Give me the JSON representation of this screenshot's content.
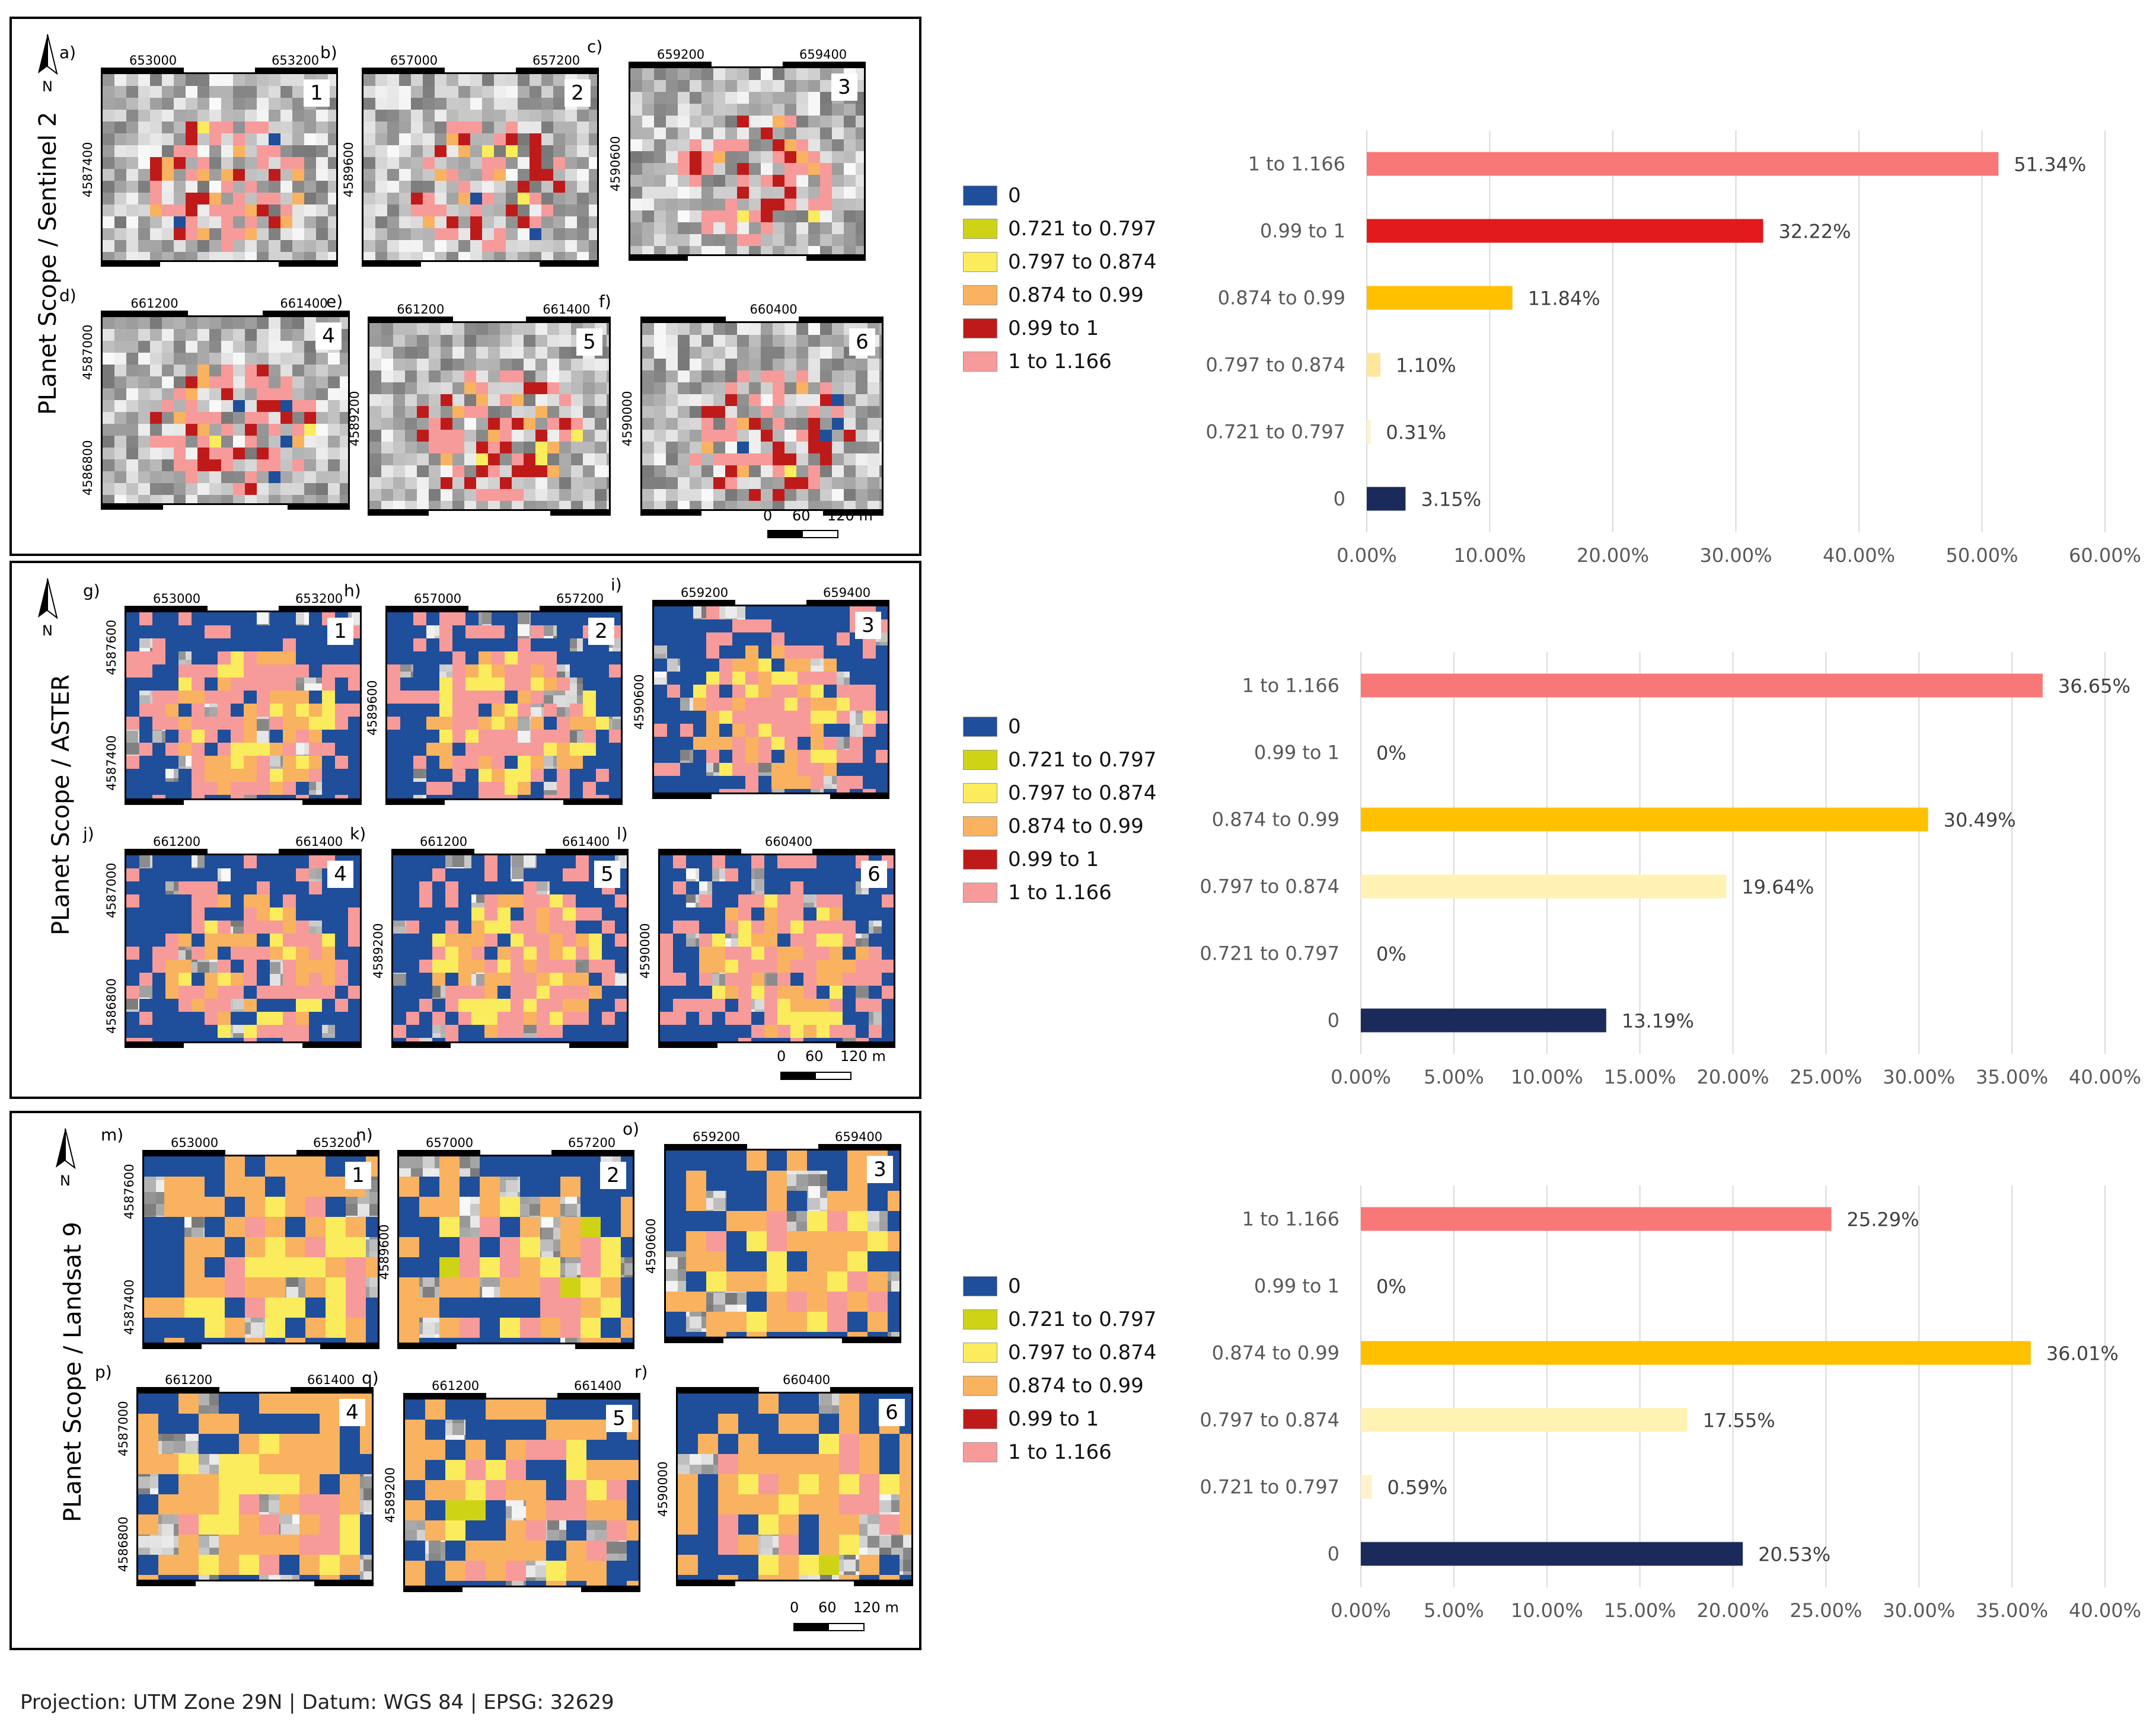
{
  "panels": [
    {
      "title": "PLanet Scope / Sentinel 2",
      "north_label": "N",
      "maps": [
        {
          "letter": "a)",
          "number": "1",
          "x_ticks": [
            "653000",
            "653200"
          ],
          "y_tick": "4587400"
        },
        {
          "letter": "b)",
          "number": "2",
          "x_ticks": [
            "657000",
            "657200"
          ],
          "y_tick": "4589600"
        },
        {
          "letter": "c)",
          "number": "3",
          "x_ticks": [
            "659200",
            "659400"
          ],
          "y_tick": "4590600"
        },
        {
          "letter": "d)",
          "number": "4",
          "x_ticks": [
            "661200",
            "661400"
          ],
          "y_ticks": [
            "4587000",
            "4586800"
          ]
        },
        {
          "letter": "e)",
          "number": "5",
          "x_ticks": [
            "661200",
            "661400"
          ],
          "y_tick": "4589200"
        },
        {
          "letter": "f)",
          "number": "6",
          "x_ticks": [
            "660400"
          ],
          "y_tick": "4590000"
        }
      ],
      "scale_labels": [
        "0",
        "60",
        "120 m"
      ]
    },
    {
      "title": "PLanet Scope / ASTER",
      "north_label": "N",
      "maps": [
        {
          "letter": "g)",
          "number": "1",
          "x_ticks": [
            "653000",
            "653200"
          ],
          "y_ticks": [
            "4587600",
            "4587400"
          ]
        },
        {
          "letter": "h)",
          "number": "2",
          "x_ticks": [
            "657000",
            "657200"
          ],
          "y_tick": "4589600"
        },
        {
          "letter": "i)",
          "number": "3",
          "x_ticks": [
            "659200",
            "659400"
          ],
          "y_tick": "4590600"
        },
        {
          "letter": "j)",
          "number": "4",
          "x_ticks": [
            "661200",
            "661400"
          ],
          "y_ticks": [
            "4587000",
            "4586800"
          ]
        },
        {
          "letter": "k)",
          "number": "5",
          "x_ticks": [
            "661200",
            "661400"
          ],
          "y_tick": "4589200"
        },
        {
          "letter": "l)",
          "number": "6",
          "x_ticks": [
            "660400"
          ],
          "y_tick": "4590000"
        }
      ],
      "scale_labels": [
        "0",
        "60",
        "120 m"
      ]
    },
    {
      "title": "PLanet Scope / Landsat 9",
      "north_label": "N",
      "maps": [
        {
          "letter": "m)",
          "number": "1",
          "x_ticks": [
            "653000",
            "653200"
          ],
          "y_ticks": [
            "4587600",
            "4587400"
          ]
        },
        {
          "letter": "n)",
          "number": "2",
          "x_ticks": [
            "657000",
            "657200"
          ],
          "y_tick": "4589600"
        },
        {
          "letter": "o)",
          "number": "3",
          "x_ticks": [
            "659200",
            "659400"
          ],
          "y_tick": "4590600"
        },
        {
          "letter": "p)",
          "number": "4",
          "x_ticks": [
            "661200",
            "661400"
          ],
          "y_ticks": [
            "4587000",
            "4586800"
          ]
        },
        {
          "letter": "q)",
          "number": "5",
          "x_ticks": [
            "661200",
            "661400"
          ],
          "y_tick": "4589200"
        },
        {
          "letter": "r)",
          "number": "6",
          "x_ticks": [
            "660400"
          ],
          "y_tick": "4590000"
        }
      ],
      "scale_labels": [
        "0",
        "60",
        "120 m"
      ]
    }
  ],
  "legend": {
    "items": [
      {
        "label": "0",
        "color": "#1f4e9a"
      },
      {
        "label": "0.721 to 0.797",
        "color": "#cfd316"
      },
      {
        "label": "0.797 to 0.874",
        "color": "#fbec5d"
      },
      {
        "label": "0.874 to 0.99",
        "color": "#f9b25f"
      },
      {
        "label": "0.99 to 1",
        "color": "#bf1a1a"
      },
      {
        "label": "1 to 1.166",
        "color": "#f79a9a"
      }
    ]
  },
  "chart_data": [
    {
      "type": "bar",
      "orientation": "horizontal",
      "title": "",
      "xlabel": "",
      "ylabel": "",
      "categories": [
        "1 to 1.166",
        "0.99 to 1",
        "0.874 to 0.99",
        "0.797 to 0.874",
        "0.721 to 0.797",
        "0"
      ],
      "values": [
        51.34,
        32.22,
        11.84,
        1.1,
        0.31,
        3.15
      ],
      "value_labels": [
        "51.34%",
        "32.22%",
        "11.84%",
        "1.10%",
        "0.31%",
        "3.15%"
      ],
      "colors": [
        "#f87777",
        "#e31a1c",
        "#ffc000",
        "#ffe699",
        "#fff2cc",
        "#1a2a5a"
      ],
      "xlim": [
        0,
        60
      ],
      "x_ticks": [
        "0.00%",
        "10.00%",
        "20.00%",
        "30.00%",
        "40.00%",
        "50.00%",
        "60.00%"
      ],
      "grid": true
    },
    {
      "type": "bar",
      "orientation": "horizontal",
      "title": "",
      "xlabel": "",
      "ylabel": "",
      "categories": [
        "1 to 1.166",
        "0.99 to 1",
        "0.874 to 0.99",
        "0.797 to 0.874",
        "0.721 to 0.797",
        "0"
      ],
      "values": [
        36.65,
        0,
        30.49,
        19.64,
        0,
        13.19
      ],
      "value_labels": [
        "36.65%",
        "0%",
        "30.49%",
        "19.64%",
        "0%",
        "13.19%"
      ],
      "colors": [
        "#f87777",
        "#e31a1c",
        "#ffc000",
        "#fff2b3",
        "#fff2cc",
        "#1a2a5a"
      ],
      "xlim": [
        0,
        40
      ],
      "x_ticks": [
        "0.00%",
        "5.00%",
        "10.00%",
        "15.00%",
        "20.00%",
        "25.00%",
        "30.00%",
        "35.00%",
        "40.00%"
      ],
      "grid": true
    },
    {
      "type": "bar",
      "orientation": "horizontal",
      "title": "",
      "xlabel": "",
      "ylabel": "",
      "categories": [
        "1 to 1.166",
        "0.99 to 1",
        "0.874 to 0.99",
        "0.797 to 0.874",
        "0.721 to 0.797",
        "0"
      ],
      "values": [
        25.29,
        0,
        36.01,
        17.55,
        0.59,
        20.53
      ],
      "value_labels": [
        "25.29%",
        "0%",
        "36.01%",
        "17.55%",
        "0.59%",
        "20.53%"
      ],
      "colors": [
        "#f87777",
        "#e31a1c",
        "#ffc000",
        "#fff2b3",
        "#fff2cc",
        "#1a2a5a"
      ],
      "xlim": [
        0,
        40
      ],
      "x_ticks": [
        "0.00%",
        "5.00%",
        "10.00%",
        "15.00%",
        "20.00%",
        "25.00%",
        "30.00%",
        "35.00%",
        "40.00%"
      ],
      "grid": true
    }
  ],
  "footer": {
    "projection": "Projection: UTM Zone 29N | Datum: WGS 84 | EPSG: 32629"
  }
}
